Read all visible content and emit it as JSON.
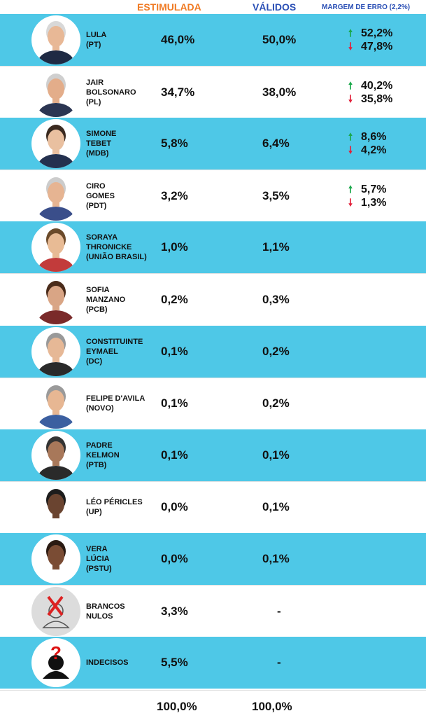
{
  "chart_data": {
    "type": "table",
    "columns": [
      "ESTIMULADA",
      "VÁLIDOS",
      "MARGEM DE ERRO (2,2%)"
    ],
    "rows": [
      {
        "name": [
          "LULA",
          "(PT)"
        ],
        "estimulada": "46,0%",
        "validos": "50,0%",
        "margin_up": "52,2%",
        "margin_down": "47,8%"
      },
      {
        "name": [
          "JAIR",
          "BOLSONARO",
          "(PL)"
        ],
        "estimulada": "34,7%",
        "validos": "38,0%",
        "margin_up": "40,2%",
        "margin_down": "35,8%"
      },
      {
        "name": [
          "SIMONE",
          "TEBET",
          "(MDB)"
        ],
        "estimulada": "5,8%",
        "validos": "6,4%",
        "margin_up": "8,6%",
        "margin_down": "4,2%"
      },
      {
        "name": [
          "CIRO",
          "GOMES",
          "(PDT)"
        ],
        "estimulada": "3,2%",
        "validos": "3,5%",
        "margin_up": "5,7%",
        "margin_down": "1,3%"
      },
      {
        "name": [
          "SORAYA",
          "THRONICKE",
          "(UNIÃO BRASIL)"
        ],
        "estimulada": "1,0%",
        "validos": "1,1%"
      },
      {
        "name": [
          "SOFIA",
          "MANZANO",
          "(PCB)"
        ],
        "estimulada": "0,2%",
        "validos": "0,3%"
      },
      {
        "name": [
          "CONSTITUINTE",
          "EYMAEL",
          "(DC)"
        ],
        "estimulada": "0,1%",
        "validos": "0,2%"
      },
      {
        "name": [
          "FELIPE D'AVILA",
          "(NOVO)"
        ],
        "estimulada": "0,1%",
        "validos": "0,2%"
      },
      {
        "name": [
          "PADRE",
          "KELMON",
          "(PTB)"
        ],
        "estimulada": "0,1%",
        "validos": "0,1%"
      },
      {
        "name": [
          "LÉO PÉRICLES",
          "(UP)"
        ],
        "estimulada": "0,0%",
        "validos": "0,1%"
      },
      {
        "name": [
          "VERA",
          "LÚCIA",
          "(PSTU)"
        ],
        "estimulada": "0,0%",
        "validos": "0,1%"
      },
      {
        "name": [
          "BRANCOS",
          "NULOS"
        ],
        "estimulada": "3,3%",
        "validos": "-"
      },
      {
        "name": [
          "INDECISOS"
        ],
        "estimulada": "5,5%",
        "validos": "-"
      }
    ],
    "totals": {
      "estimulada": "100,0%",
      "validos": "100,0%"
    }
  },
  "icons": {
    "up": "arrow-up-icon",
    "down": "arrow-down-icon"
  },
  "colors": {
    "row_shaded": "#4ec8e7",
    "header_estimulada": "#f07a23",
    "header_validos": "#2a4fb5",
    "arrow_up": "#1aa84a",
    "arrow_down": "#e2203a"
  }
}
